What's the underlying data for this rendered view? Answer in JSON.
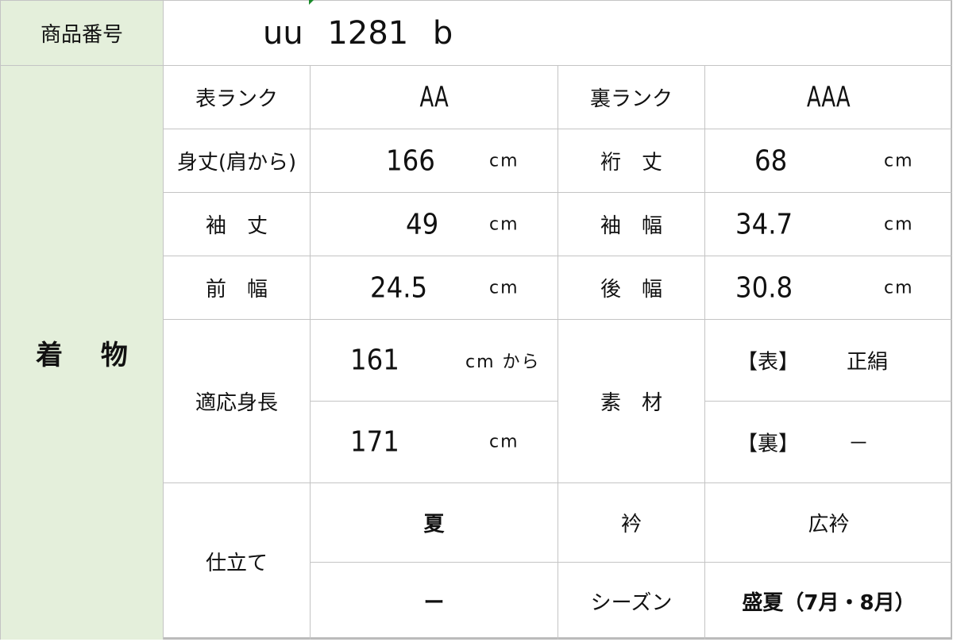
{
  "product_number": {
    "label": "商品番号",
    "value": "uu  1281  b"
  },
  "section": "着 物",
  "rows": {
    "omote_rank": {
      "label": "表ランク",
      "value": "AA"
    },
    "ura_rank": {
      "label": "裏ランク",
      "value": "AAA"
    },
    "mitake": {
      "label": "身丈(肩から)",
      "value": "166",
      "unit": "cm"
    },
    "yuki": {
      "label": "裄　丈",
      "value": "68",
      "unit": "cm"
    },
    "sodetake": {
      "label": "袖　丈",
      "value": "49",
      "unit": "cm"
    },
    "sodehaba": {
      "label": "袖　幅",
      "value": "34.7",
      "unit": "cm"
    },
    "maehaba": {
      "label": "前　幅",
      "value": "24.5",
      "unit": "cm"
    },
    "ushirohaba": {
      "label": "後　幅",
      "value": "30.8",
      "unit": "cm"
    },
    "height": {
      "label": "適応身長",
      "from": "161",
      "from_unit": "cm から",
      "to": "171",
      "to_unit": "cm"
    },
    "material": {
      "label": "素　材",
      "omote_label": "【表】",
      "omote_value": "正絹",
      "ura_label": "【裏】",
      "ura_value": "－"
    },
    "shitate": {
      "label": "仕立て",
      "value1": "夏",
      "value2": "ー"
    },
    "eri": {
      "label": "衿",
      "value": "広衿"
    },
    "season": {
      "label": "シーズン",
      "value": "盛夏（7月・8月）"
    }
  },
  "colors": {
    "label_bg": "#e4efdb",
    "grid": "#c4c4c4"
  }
}
